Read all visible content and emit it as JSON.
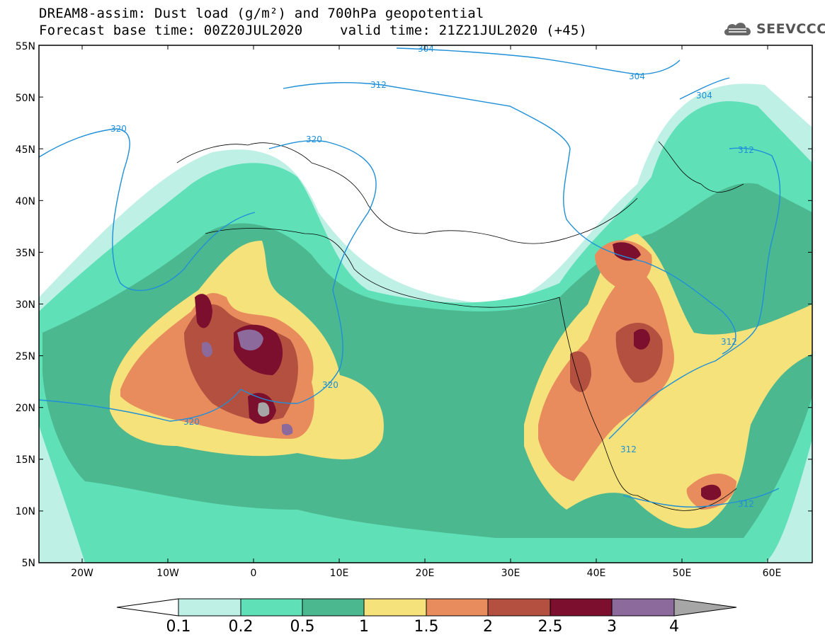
{
  "header": {
    "line1": "DREAM8-assim: Dust load (g/m²) and 700hPa geopotential",
    "line2_left": "Forecast base time: 00Z20JUL2020",
    "line2_right": "valid time: 21Z21JUL2020 (+45)",
    "brand": "SEEVCCC"
  },
  "map": {
    "lat_labels": [
      "55N",
      "50N",
      "45N",
      "40N",
      "35N",
      "30N",
      "25N",
      "20N",
      "15N",
      "10N",
      "5N"
    ],
    "lon_labels": [
      "20W",
      "10W",
      "0",
      "10E",
      "20E",
      "30E",
      "40E",
      "50E",
      "60E"
    ],
    "contour_labels": [
      "304",
      "312",
      "304",
      "320",
      "320",
      "320",
      "320",
      "312",
      "312",
      "312",
      "312",
      "304"
    ],
    "contour_color": "#1f8fd8"
  },
  "colorbar": {
    "levels": [
      "0.1",
      "0.2",
      "0.5",
      "1",
      "1.5",
      "2",
      "2.5",
      "3",
      "4"
    ],
    "colors": [
      "#ffffff",
      "#bff0e6",
      "#5fe0b7",
      "#4cb890",
      "#f5e27a",
      "#e88c5e",
      "#b3503f",
      "#7c0e2e",
      "#8c6a9c",
      "#a6a6a6"
    ]
  }
}
